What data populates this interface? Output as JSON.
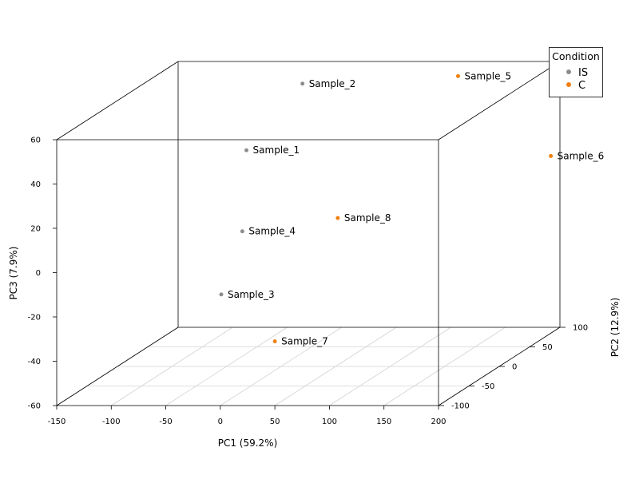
{
  "chart_data": {
    "type": "scatter",
    "projection": "3d-box",
    "axes": {
      "x": {
        "label": "PC1 (59.2%)",
        "lim": [
          -150,
          200
        ],
        "ticks": [
          -150,
          -100,
          -50,
          0,
          50,
          100,
          150,
          200
        ]
      },
      "y": {
        "label": "PC2 (12.9%)",
        "lim": [
          -100,
          100
        ],
        "ticks": [
          -100,
          -50,
          0,
          50,
          100
        ]
      },
      "z": {
        "label": "PC3 (7.9%)",
        "lim": [
          -60,
          60
        ],
        "ticks": [
          -60,
          -40,
          -20,
          0,
          20,
          40,
          60
        ]
      }
    },
    "grid": "floor",
    "legend": {
      "title": "Condition",
      "position": "top-right",
      "entries": [
        {
          "name": "IS",
          "color": "#8c8c8c"
        },
        {
          "name": "C",
          "color": "#f07f0f"
        }
      ]
    },
    "points": [
      {
        "label": "Sample_1",
        "group": "IS",
        "x": -32.0,
        "y": 0.5,
        "z": 37.5
      },
      {
        "label": "Sample_2",
        "group": "IS",
        "x": -36.0,
        "y": 100.0,
        "z": 50.0
      },
      {
        "label": "Sample_3",
        "group": "IS",
        "x": -54.8,
        "y": 0.0,
        "z": -27.5
      },
      {
        "label": "Sample_4",
        "group": "IS",
        "x": -35.5,
        "y": 0.0,
        "z": 1.0
      },
      {
        "label": "Sample_5",
        "group": "C",
        "x": 140.0,
        "y": 40.0,
        "z": 64.0
      },
      {
        "label": "Sample_6",
        "group": "C",
        "x": 200.0,
        "y": 85.0,
        "z": 20.0
      },
      {
        "label": "Sample_7",
        "group": "C",
        "x": 50.0,
        "y": -100.0,
        "z": -31.0
      },
      {
        "label": "Sample_8",
        "group": "C",
        "x": 52.0,
        "y": 0.0,
        "z": 7.0
      }
    ]
  }
}
